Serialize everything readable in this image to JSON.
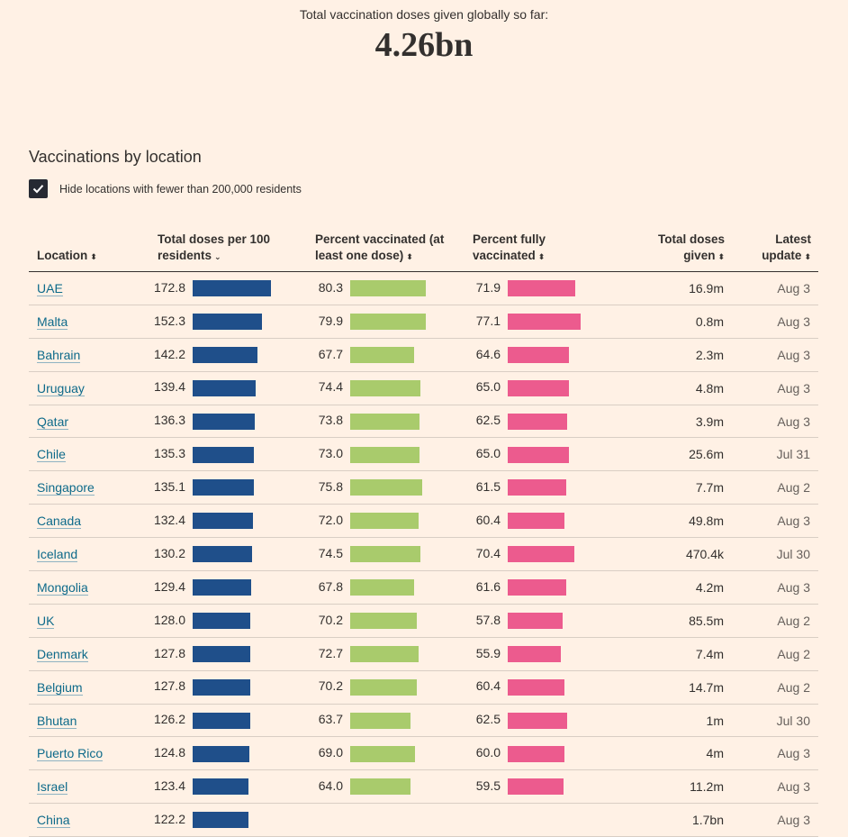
{
  "header": {
    "subtitle": "Total vaccination doses given globally so far:",
    "total": "4.26bn"
  },
  "section_title": "Vaccinations by location",
  "filter": {
    "checked": true,
    "label": "Hide locations with fewer than 200,000 residents"
  },
  "columns": {
    "location": "Location",
    "doses_per_100": "Total doses per 100 residents",
    "pct_one_dose": "Percent vaccinated (at least one dose)",
    "pct_fully": "Percent fully vaccinated",
    "total_doses": "Total doses given",
    "latest_update": "Latest update"
  },
  "colors": {
    "doses_bar": "#1f4f8a",
    "one_dose_bar": "#a9cb6c",
    "fully_bar": "#ec5b8e",
    "link": "#0d6a8a"
  },
  "rows": [
    {
      "location": "UAE",
      "doses": "172.8",
      "one": "80.3",
      "fully": "71.9",
      "total": "16.9m",
      "update": "Aug 3"
    },
    {
      "location": "Malta",
      "doses": "152.3",
      "one": "79.9",
      "fully": "77.1",
      "total": "0.8m",
      "update": "Aug 3"
    },
    {
      "location": "Bahrain",
      "doses": "142.2",
      "one": "67.7",
      "fully": "64.6",
      "total": "2.3m",
      "update": "Aug 3"
    },
    {
      "location": "Uruguay",
      "doses": "139.4",
      "one": "74.4",
      "fully": "65.0",
      "total": "4.8m",
      "update": "Aug 3"
    },
    {
      "location": "Qatar",
      "doses": "136.3",
      "one": "73.8",
      "fully": "62.5",
      "total": "3.9m",
      "update": "Aug 3"
    },
    {
      "location": "Chile",
      "doses": "135.3",
      "one": "73.0",
      "fully": "65.0",
      "total": "25.6m",
      "update": "Jul 31"
    },
    {
      "location": "Singapore",
      "doses": "135.1",
      "one": "75.8",
      "fully": "61.5",
      "total": "7.7m",
      "update": "Aug 2"
    },
    {
      "location": "Canada",
      "doses": "132.4",
      "one": "72.0",
      "fully": "60.4",
      "total": "49.8m",
      "update": "Aug 3"
    },
    {
      "location": "Iceland",
      "doses": "130.2",
      "one": "74.5",
      "fully": "70.4",
      "total": "470.4k",
      "update": "Jul 30"
    },
    {
      "location": "Mongolia",
      "doses": "129.4",
      "one": "67.8",
      "fully": "61.6",
      "total": "4.2m",
      "update": "Aug 3"
    },
    {
      "location": "UK",
      "doses": "128.0",
      "one": "70.2",
      "fully": "57.8",
      "total": "85.5m",
      "update": "Aug 2"
    },
    {
      "location": "Denmark",
      "doses": "127.8",
      "one": "72.7",
      "fully": "55.9",
      "total": "7.4m",
      "update": "Aug 2"
    },
    {
      "location": "Belgium",
      "doses": "127.8",
      "one": "70.2",
      "fully": "60.4",
      "total": "14.7m",
      "update": "Aug 2"
    },
    {
      "location": "Bhutan",
      "doses": "126.2",
      "one": "63.7",
      "fully": "62.5",
      "total": "1m",
      "update": "Jul 30"
    },
    {
      "location": "Puerto Rico",
      "doses": "124.8",
      "one": "69.0",
      "fully": "60.0",
      "total": "4m",
      "update": "Aug 3"
    },
    {
      "location": "Israel",
      "doses": "123.4",
      "one": "64.0",
      "fully": "59.5",
      "total": "11.2m",
      "update": "Aug 3"
    },
    {
      "location": "China",
      "doses": "122.2",
      "one": "",
      "fully": "",
      "total": "1.7bn",
      "update": "Aug 3"
    }
  ]
}
